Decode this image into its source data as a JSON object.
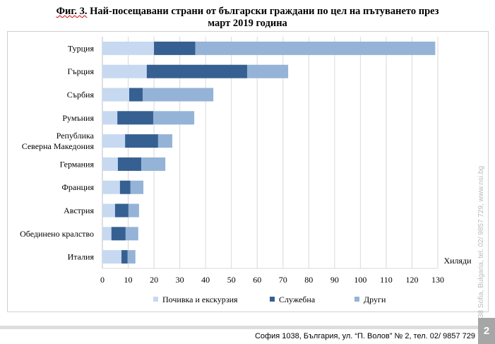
{
  "title_prefix": "Фиг. 3.",
  "title_rest": " Най-посещавани страни от български граждани по цел на пътуването през",
  "title_line2": "март 2019 година",
  "side_text": "38 Sofia, Bulgaria, tel. 02/ 9857 729, www.nsi.bg",
  "footer": "София 1038, България, ул. “П. Волов” № 2, тел. 02/ 9857 729",
  "page_number": "2",
  "chart_data": {
    "type": "bar",
    "orientation": "horizontal",
    "stacked": true,
    "unit_label": "Хиляди",
    "categories": [
      "Турция",
      "Гърция",
      "Сърбия",
      "Румъния",
      "Република Северна Македония",
      "Германия",
      "Франция",
      "Австрия",
      "Обединено кралство",
      "Италия"
    ],
    "series": [
      {
        "name": "Почивка и екскурзия",
        "color": "#c6d9f1",
        "values": [
          20,
          17.2,
          10.4,
          5.8,
          8.8,
          6.0,
          6.8,
          4.9,
          3.5,
          7.4
        ]
      },
      {
        "name": "Служебна",
        "color": "#366092",
        "values": [
          16,
          38.9,
          5.2,
          13.9,
          12.8,
          9.1,
          4.1,
          5.2,
          5.5,
          2.4
        ]
      },
      {
        "name": "Други",
        "color": "#95b3d7",
        "values": [
          93,
          15.9,
          27.4,
          15.9,
          5.5,
          9.3,
          5.0,
          4.1,
          4.9,
          3.0
        ]
      }
    ],
    "xlim": [
      0,
      130
    ],
    "xticks": [
      0,
      10,
      20,
      30,
      40,
      50,
      60,
      70,
      80,
      90,
      100,
      110,
      120,
      130
    ],
    "grid": true,
    "legend_position": "bottom"
  }
}
